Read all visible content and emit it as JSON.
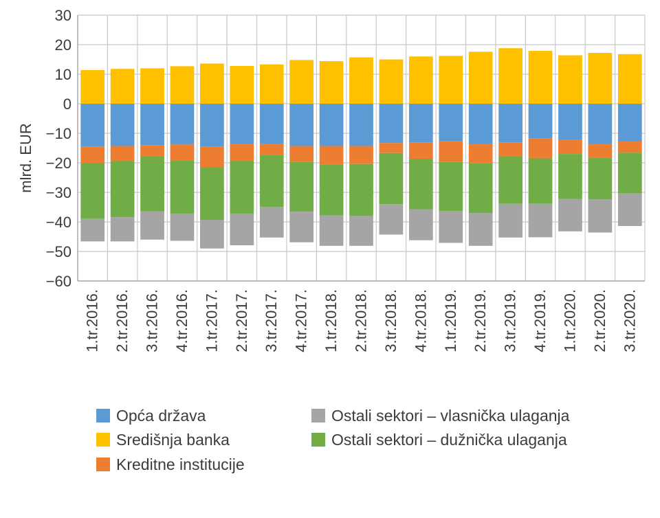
{
  "chart_data": {
    "type": "bar",
    "stacked": true,
    "ylabel": "mlrd. EUR",
    "ylim": [
      -60,
      30
    ],
    "ytick_step": 10,
    "grid": true,
    "legend_position": "bottom",
    "categories": [
      "1.tr.2016.",
      "2.tr.2016.",
      "3.tr.2016.",
      "4.tr.2016.",
      "1.tr.2017.",
      "2.tr.2017.",
      "3.tr.2017.",
      "4.tr.2017.",
      "1.tr.2018.",
      "2.tr.2018.",
      "3.tr.2018.",
      "4.tr.2018.",
      "1.tr.2019.",
      "2.tr.2019.",
      "3.tr.2019.",
      "4.tr.2019.",
      "1.tr.2020.",
      "2.tr.2020.",
      "3.tr.2020."
    ],
    "series": [
      {
        "name": "Opća država",
        "color": "#5b9bd5",
        "values": [
          -14.5,
          -14.3,
          -14,
          -13.8,
          -14.6,
          -13.5,
          -13.5,
          -14.3,
          -14.3,
          -14.3,
          -13.3,
          -13.1,
          -12.7,
          -13.7,
          -13.1,
          -11.8,
          -12.1,
          -13.6,
          -12.8
        ]
      },
      {
        "name": "Kreditne institucije",
        "color": "#ed7d31",
        "values": [
          -5.6,
          -5.1,
          -3.9,
          -5.3,
          -6.8,
          -5.9,
          -3.8,
          -5.3,
          -6.2,
          -6.1,
          -3.4,
          -5.5,
          -7.0,
          -6.5,
          -4.7,
          -6.7,
          -4.9,
          -4.6,
          -3.8
        ]
      },
      {
        "name": "Ostali sektori – dužnička ulaganja",
        "color": "#70ad47",
        "values": [
          -18.9,
          -19.0,
          -18.5,
          -18.1,
          -17.9,
          -17.8,
          -17.6,
          -16.9,
          -17.3,
          -17.6,
          -17.3,
          -17.1,
          -16.6,
          -16.8,
          -16.1,
          -15.4,
          -15.2,
          -14.2,
          -13.8
        ]
      },
      {
        "name": "Ostali sektori – vlasnička ulaganja",
        "color": "#a5a5a5",
        "values": [
          -7.6,
          -8.2,
          -9.6,
          -9.2,
          -9.7,
          -10.7,
          -10.4,
          -10.4,
          -10.3,
          -10.1,
          -10.3,
          -10.5,
          -10.8,
          -11.1,
          -11.4,
          -11.3,
          -11.0,
          -11.2,
          -11.0
        ]
      },
      {
        "name": "Središnja banka",
        "color": "#ffc000",
        "values": [
          11.4,
          11.8,
          12.0,
          12.7,
          13.6,
          12.8,
          13.3,
          14.8,
          14.4,
          15.7,
          15.0,
          16.0,
          16.2,
          17.6,
          18.8,
          17.9,
          16.4,
          17.2,
          16.8
        ]
      }
    ],
    "legend_order": [
      [
        "Opća država",
        "Ostali sektori – vlasnička ulaganja"
      ],
      [
        "Središnja banka",
        "Ostali sektori – dužnička ulaganja"
      ],
      [
        "Kreditne institucije"
      ]
    ]
  }
}
